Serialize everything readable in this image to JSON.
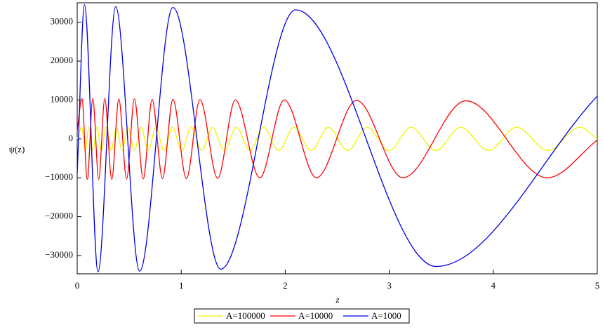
{
  "chart_data": {
    "type": "line",
    "xlabel": "z",
    "ylabel": "ψ(z)",
    "xlim": [
      0,
      5
    ],
    "ylim": [
      -34700,
      35000
    ],
    "xticks": [
      0,
      1,
      2,
      3,
      4,
      5
    ],
    "yticks": [
      {
        "value": -30000,
        "label": "−30000"
      },
      {
        "value": -20000,
        "label": "−20000"
      },
      {
        "value": -10000,
        "label": "−10000"
      },
      0,
      10000,
      20000,
      30000
    ],
    "grid": false,
    "legend": "bottom",
    "series": [
      {
        "name": "A=100000",
        "color": "#f2f200",
        "x": [
          0,
          0.043,
          0.078,
          0.112,
          0.151,
          0.189,
          0.233,
          0.277,
          0.327,
          0.376,
          0.432,
          0.487,
          0.55,
          0.613,
          0.684,
          0.755,
          0.835,
          0.915,
          1.006,
          1.096,
          1.198,
          1.3,
          1.415,
          1.53,
          1.66,
          1.79,
          1.937,
          2.083,
          2.249,
          2.414,
          2.601,
          2.788,
          2.999,
          3.21,
          3.448,
          3.686,
          3.955,
          4.223,
          4.527,
          4.83,
          5
        ],
        "values": [
          0,
          3000,
          -3000,
          3000,
          -3000,
          3000,
          -3000,
          3000,
          -3000,
          3000,
          -3000,
          3000,
          -3000,
          3000,
          -3000,
          3000,
          -3000,
          3000,
          -3000,
          3000,
          -3000,
          3000,
          -3000,
          3000,
          -3000,
          3000,
          -3000,
          3000,
          -3000,
          3000,
          -3000,
          3000,
          -3000,
          3000,
          -3000,
          3000,
          -3000,
          3000,
          -3000,
          3000,
          0
        ]
      },
      {
        "name": "A=10000",
        "color": "#ff0000",
        "x": [
          0,
          0.045,
          0.097,
          0.15,
          0.207,
          0.265,
          0.332,
          0.4,
          0.475,
          0.55,
          0.635,
          0.72,
          0.82,
          0.92,
          1.05,
          1.18,
          1.35,
          1.52,
          1.755,
          1.99,
          2.3,
          2.686,
          3.13,
          3.738,
          4.52,
          5
        ],
        "values": [
          2000,
          10400,
          -10400,
          10400,
          -10400,
          10400,
          -10400,
          10300,
          -10300,
          10300,
          -10300,
          10200,
          -10200,
          10200,
          -10200,
          10100,
          -10100,
          10000,
          -10000,
          10000,
          -10000,
          9900,
          -10000,
          9800,
          -10000,
          -300
        ]
      },
      {
        "name": "A=1000",
        "color": "#0000e6",
        "x": [
          0,
          0.07,
          0.2,
          0.37,
          0.6,
          0.92,
          1.38,
          2.1,
          3.45,
          5
        ],
        "values": [
          -9000,
          34500,
          -34200,
          34000,
          -34000,
          33800,
          -33500,
          33200,
          -32800,
          11000
        ]
      }
    ]
  }
}
